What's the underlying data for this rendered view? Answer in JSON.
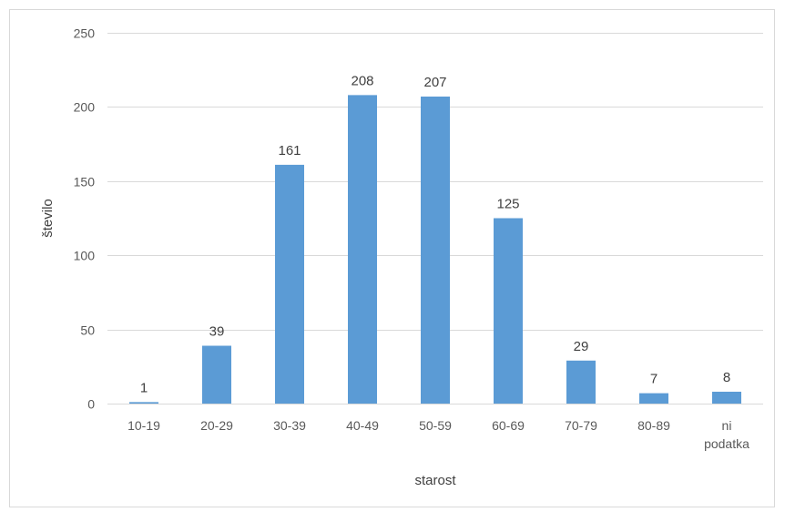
{
  "chart_data": {
    "type": "bar",
    "categories": [
      "10-19",
      "20-29",
      "30-39",
      "40-49",
      "50-59",
      "60-69",
      "70-79",
      "80-89",
      "ni podatka"
    ],
    "values": [
      1,
      39,
      161,
      208,
      207,
      125,
      29,
      7,
      8
    ],
    "data_labels": [
      "1",
      "39",
      "161",
      "208",
      "207",
      "125",
      "29",
      "7",
      "8"
    ],
    "title": "",
    "xlabel": "starost",
    "ylabel": "število",
    "ylim": [
      0,
      250
    ],
    "yticks": [
      0,
      50,
      100,
      150,
      200,
      250
    ],
    "ytick_labels": [
      "0",
      "50",
      "100",
      "150",
      "200",
      "250"
    ],
    "grid": true,
    "legend": "none",
    "colors": {
      "bar": "#5b9bd5",
      "grid": "#d9d9d9",
      "text": "#595959",
      "frame": "#d9d9d9"
    }
  }
}
